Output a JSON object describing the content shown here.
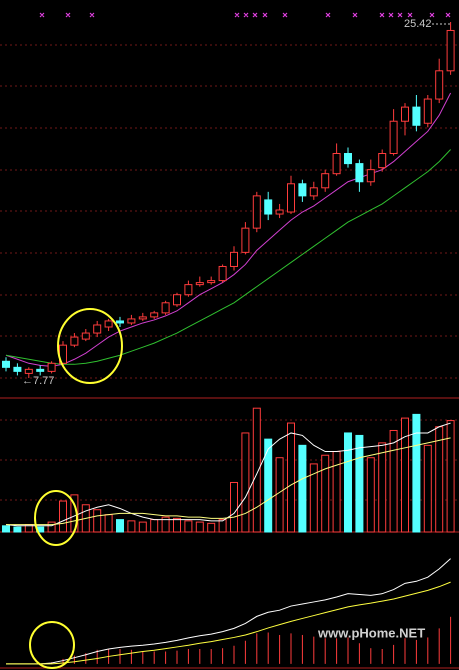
{
  "chart_data": [
    {
      "type": "candlestick",
      "ylim": [
        6.78,
        26.51
      ],
      "up_color": "#ff3c3c",
      "down_color": "#54ffff",
      "open": [
        8.6,
        8.3,
        8.0,
        8.2,
        8.1,
        8.5,
        9.4,
        9.7,
        10.0,
        10.3,
        10.6,
        10.5,
        10.7,
        10.8,
        11.0,
        11.4,
        11.9,
        12.4,
        12.5,
        12.6,
        13.3,
        14.0,
        15.2,
        16.6,
        15.9,
        16.0,
        17.4,
        16.8,
        17.2,
        17.9,
        18.9,
        18.4,
        17.5,
        18.2,
        18.9,
        20.5,
        21.2,
        20.4,
        21.6,
        23.0
      ],
      "high": [
        8.8,
        8.5,
        8.3,
        8.4,
        8.6,
        9.6,
        10.0,
        10.2,
        10.6,
        10.7,
        10.8,
        10.9,
        11.0,
        11.1,
        11.6,
        12.0,
        12.6,
        12.8,
        12.8,
        13.4,
        14.3,
        15.5,
        17.0,
        17.0,
        16.4,
        17.8,
        17.6,
        17.5,
        18.1,
        19.4,
        19.2,
        18.6,
        18.6,
        19.1,
        21.1,
        21.4,
        21.8,
        21.8,
        23.6,
        25.42
      ],
      "low": [
        8.1,
        7.9,
        7.77,
        7.9,
        8.0,
        8.4,
        9.3,
        9.6,
        9.8,
        10.1,
        10.3,
        10.4,
        10.6,
        10.7,
        10.9,
        11.3,
        11.8,
        12.3,
        12.4,
        12.5,
        13.1,
        13.9,
        15.0,
        15.6,
        15.7,
        15.9,
        16.5,
        16.6,
        17.0,
        17.8,
        18.2,
        17.0,
        17.3,
        18.0,
        18.8,
        19.8,
        20.0,
        20.2,
        21.4,
        22.8
      ],
      "close": [
        8.3,
        8.1,
        8.2,
        8.1,
        8.5,
        9.4,
        9.8,
        10.0,
        10.4,
        10.6,
        10.5,
        10.7,
        10.8,
        11.0,
        11.5,
        11.9,
        12.4,
        12.5,
        12.6,
        13.3,
        14.0,
        15.2,
        16.8,
        15.9,
        16.1,
        17.4,
        16.8,
        17.2,
        17.9,
        18.9,
        18.4,
        17.5,
        18.1,
        18.9,
        20.5,
        21.2,
        20.3,
        21.6,
        23.0,
        25.0
      ],
      "lines": [
        {
          "color": "#d040d0",
          "values": [
            8.9,
            8.7,
            8.5,
            8.4,
            8.35,
            8.45,
            8.7,
            9.0,
            9.4,
            9.8,
            10.1,
            10.3,
            10.5,
            10.65,
            10.85,
            11.1,
            11.5,
            11.9,
            12.2,
            12.5,
            12.9,
            13.4,
            14.1,
            14.6,
            15.1,
            15.6,
            16.0,
            16.3,
            16.7,
            17.1,
            17.5,
            17.7,
            17.9,
            18.1,
            18.5,
            19.0,
            19.5,
            20.0,
            20.8,
            21.9
          ]
        },
        {
          "color": "#30c030",
          "values": [
            8.9,
            8.8,
            8.7,
            8.6,
            8.5,
            8.45,
            8.45,
            8.5,
            8.6,
            8.75,
            8.9,
            9.1,
            9.3,
            9.5,
            9.75,
            10.0,
            10.3,
            10.6,
            10.9,
            11.2,
            11.5,
            11.9,
            12.3,
            12.7,
            13.1,
            13.5,
            13.9,
            14.3,
            14.7,
            15.1,
            15.5,
            15.8,
            16.1,
            16.4,
            16.8,
            17.2,
            17.6,
            18.0,
            18.5,
            19.1
          ]
        }
      ],
      "annotations": [
        "25.42",
        "←7.77"
      ]
    },
    {
      "type": "volume",
      "ylim": [
        0,
        105
      ],
      "values": [
        5,
        4,
        6,
        4,
        8,
        25,
        30,
        22,
        18,
        14,
        10,
        9,
        8,
        10,
        12,
        11,
        9,
        8,
        7,
        10,
        40,
        80,
        100,
        75,
        60,
        88,
        70,
        55,
        62,
        65,
        80,
        78,
        60,
        72,
        82,
        92,
        95,
        70,
        85,
        90
      ],
      "lines": [
        {
          "color": "#ffffff",
          "values": [
            6,
            5,
            5,
            5,
            5,
            9,
            13,
            17,
            20,
            22,
            19,
            15,
            12,
            10,
            10,
            10,
            10,
            10,
            9,
            9,
            15,
            28,
            47,
            67,
            75,
            80,
            78,
            70,
            65,
            65,
            66,
            68,
            69,
            70,
            72,
            77,
            80,
            80,
            85,
            88
          ]
        },
        {
          "color": "#ffff80",
          "values": [
            6,
            6,
            6,
            6,
            6,
            7,
            9,
            11,
            13,
            14,
            15,
            15,
            15,
            14,
            13,
            13,
            12,
            12,
            11,
            11,
            12,
            15,
            20,
            26,
            32,
            38,
            43,
            47,
            51,
            54,
            57,
            60,
            62,
            64,
            66,
            68,
            70,
            72,
            74,
            76
          ]
        }
      ]
    },
    {
      "type": "macd",
      "ylim": [
        -0.1,
        3.0
      ],
      "color": "#ff3c3c",
      "values": [
        0,
        0,
        0,
        0,
        0.04,
        0.12,
        0.2,
        0.26,
        0.34,
        0.36,
        0.36,
        0.34,
        0.3,
        0.3,
        0.3,
        0.32,
        0.36,
        0.36,
        0.36,
        0.38,
        0.44,
        0.56,
        0.74,
        0.76,
        0.7,
        0.74,
        0.7,
        0.66,
        0.62,
        0.62,
        0.64,
        0.5,
        0.38,
        0.36,
        0.46,
        0.62,
        0.58,
        0.64,
        0.86,
        1.14
      ],
      "lines": [
        {
          "color": "#ffffff",
          "values": [
            0,
            0,
            0,
            0,
            0.02,
            0.08,
            0.15,
            0.22,
            0.3,
            0.36,
            0.4,
            0.43,
            0.45,
            0.48,
            0.52,
            0.57,
            0.63,
            0.68,
            0.72,
            0.78,
            0.86,
            0.98,
            1.15,
            1.25,
            1.3,
            1.4,
            1.45,
            1.5,
            1.55,
            1.62,
            1.7,
            1.68,
            1.66,
            1.7,
            1.8,
            1.95,
            2.0,
            2.1,
            2.3,
            2.55
          ]
        },
        {
          "color": "#ffff40",
          "values": [
            0,
            0,
            0,
            0,
            0,
            0.02,
            0.05,
            0.09,
            0.13,
            0.18,
            0.22,
            0.26,
            0.3,
            0.33,
            0.37,
            0.41,
            0.45,
            0.5,
            0.54,
            0.59,
            0.64,
            0.7,
            0.78,
            0.87,
            0.95,
            1.03,
            1.1,
            1.17,
            1.24,
            1.31,
            1.38,
            1.43,
            1.47,
            1.52,
            1.57,
            1.64,
            1.71,
            1.78,
            1.87,
            1.98
          ]
        }
      ]
    }
  ],
  "watermark": "www.pHome.NET"
}
